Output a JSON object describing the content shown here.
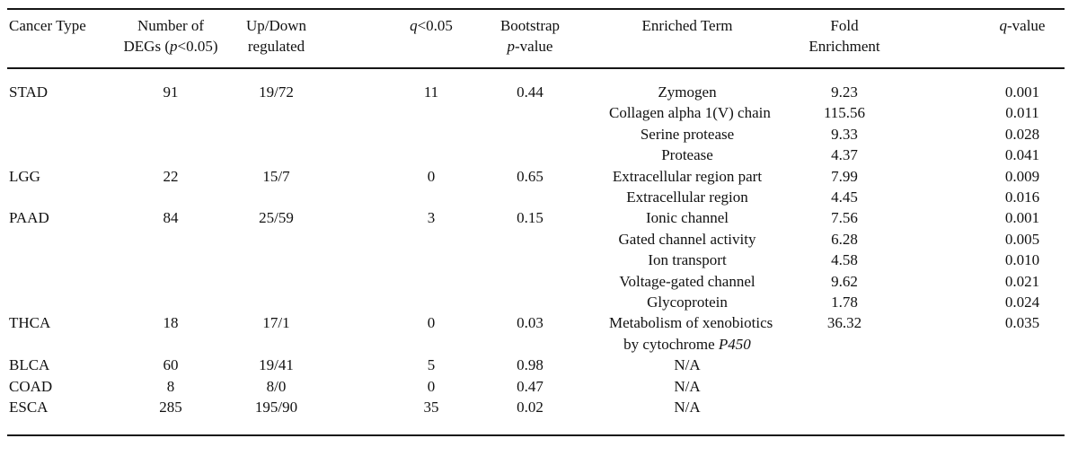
{
  "page": {
    "background_color": "#ffffff",
    "text_color": "#111111",
    "rule_color": "#151515"
  },
  "table": {
    "columns": [
      {
        "key": "cancer_type",
        "lines": [
          "Cancer Type"
        ]
      },
      {
        "key": "num_degs",
        "lines": [
          "Number of",
          [
            {
              "t": "DEGs ("
            },
            {
              "t": "p",
              "i": true
            },
            {
              "t": "<0.05)"
            }
          ]
        ]
      },
      {
        "key": "updown",
        "lines": [
          "Up/Down",
          "regulated"
        ]
      },
      {
        "key": "q005",
        "lines": [
          [
            {
              "t": "q",
              "i": true
            },
            {
              "t": "<0.05"
            }
          ]
        ]
      },
      {
        "key": "bootstrap_p",
        "lines": [
          "Bootstrap",
          [
            {
              "t": "p",
              "i": true
            },
            {
              "t": "-value"
            }
          ]
        ]
      },
      {
        "key": "enriched_term",
        "lines": [
          "Enriched Term"
        ]
      },
      {
        "key": "fold_enrichment",
        "lines": [
          "Fold",
          "Enrichment"
        ]
      },
      {
        "key": "q_value",
        "lines": [
          [
            {
              "t": "q",
              "i": true
            },
            {
              "t": "-value"
            }
          ]
        ]
      }
    ],
    "groups": [
      {
        "cancer_type": "STAD",
        "num_degs": "91",
        "updown": "19/72",
        "q005": "11",
        "bootstrap_p": "0.44",
        "terms": [
          {
            "lines": [
              "Zymogen"
            ],
            "fold": "9.23",
            "q": "0.001"
          },
          {
            "lines": [
              "Collagen alpha 1(V) chain"
            ],
            "fold": "115.56",
            "q": "0.011"
          },
          {
            "lines": [
              "Serine protease"
            ],
            "fold": "9.33",
            "q": "0.028"
          },
          {
            "lines": [
              "Protease"
            ],
            "fold": "4.37",
            "q": "0.041"
          }
        ]
      },
      {
        "cancer_type": "LGG",
        "num_degs": "22",
        "updown": "15/7",
        "q005": "0",
        "bootstrap_p": "0.65",
        "terms": [
          {
            "lines": [
              "Extracellular region part"
            ],
            "fold": "7.99",
            "q": "0.009"
          },
          {
            "lines": [
              "Extracellular region"
            ],
            "fold": "4.45",
            "q": "0.016"
          }
        ]
      },
      {
        "cancer_type": "PAAD",
        "num_degs": "84",
        "updown": "25/59",
        "q005": "3",
        "bootstrap_p": "0.15",
        "terms": [
          {
            "lines": [
              "Ionic channel"
            ],
            "fold": "7.56",
            "q": "0.001"
          },
          {
            "lines": [
              "Gated channel activity"
            ],
            "fold": "6.28",
            "q": "0.005"
          },
          {
            "lines": [
              "Ion transport"
            ],
            "fold": "4.58",
            "q": "0.010"
          },
          {
            "lines": [
              "Voltage-gated channel"
            ],
            "fold": "9.62",
            "q": "0.021"
          },
          {
            "lines": [
              "Glycoprotein"
            ],
            "fold": "1.78",
            "q": "0.024"
          }
        ]
      },
      {
        "cancer_type": "THCA",
        "num_degs": "18",
        "updown": "17/1",
        "q005": "0",
        "bootstrap_p": "0.03",
        "terms": [
          {
            "lines": [
              "Metabolism of xenobiotics",
              [
                {
                  "t": "by cytochrome "
                },
                {
                  "t": "P450",
                  "i": true
                }
              ]
            ],
            "fold": "36.32",
            "q": "0.035"
          }
        ]
      },
      {
        "cancer_type": "BLCA",
        "num_degs": "60",
        "updown": "19/41",
        "q005": "5",
        "bootstrap_p": "0.98",
        "terms": [
          {
            "lines": [
              "N/A"
            ],
            "fold": "",
            "q": ""
          }
        ]
      },
      {
        "cancer_type": "COAD",
        "num_degs": "8",
        "updown": "8/0",
        "q005": "0",
        "bootstrap_p": "0.47",
        "terms": [
          {
            "lines": [
              "N/A"
            ],
            "fold": "",
            "q": ""
          }
        ]
      },
      {
        "cancer_type": "ESCA",
        "num_degs": "285",
        "updown": "195/90",
        "q005": "35",
        "bootstrap_p": "0.02",
        "terms": [
          {
            "lines": [
              "N/A"
            ],
            "fold": "",
            "q": ""
          }
        ]
      }
    ]
  }
}
